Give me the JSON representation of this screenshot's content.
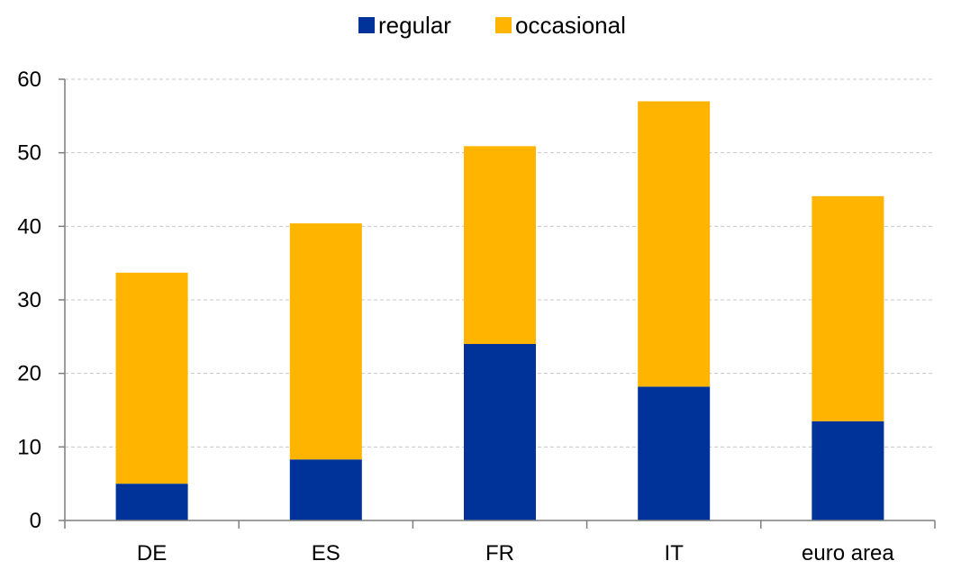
{
  "chart_data": {
    "type": "bar",
    "stacked": true,
    "categories": [
      "DE",
      "ES",
      "FR",
      "IT",
      "euro area"
    ],
    "series": [
      {
        "name": "regular",
        "values": [
          5.0,
          8.3,
          24.0,
          18.2,
          13.5
        ],
        "color": "#003399"
      },
      {
        "name": "occasional",
        "values": [
          28.7,
          32.1,
          26.9,
          38.8,
          30.6
        ],
        "color": "#FFB400"
      }
    ],
    "y_ticks": [
      "0",
      "10",
      "20",
      "30",
      "40",
      "50",
      "60"
    ],
    "ylim": [
      0,
      60
    ],
    "grid": true,
    "grid_style": "dashed",
    "legend_position": "top-center",
    "title": "",
    "xlabel": "",
    "ylabel": ""
  }
}
